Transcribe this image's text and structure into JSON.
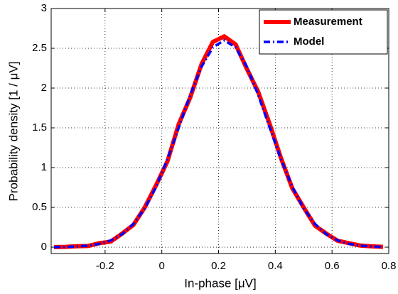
{
  "chart_data": {
    "type": "line",
    "xlabel": "In-phase  [μV]",
    "ylabel": "Probability density  [1 / μV]",
    "x": [
      -0.38,
      -0.34,
      -0.3,
      -0.26,
      -0.22,
      -0.18,
      -0.14,
      -0.1,
      -0.06,
      -0.02,
      0.02,
      0.06,
      0.1,
      0.14,
      0.18,
      0.22,
      0.26,
      0.3,
      0.34,
      0.38,
      0.42,
      0.46,
      0.5,
      0.54,
      0.58,
      0.62,
      0.66,
      0.7,
      0.74,
      0.78
    ],
    "series": [
      {
        "name": "Measurement",
        "color": "#ff0000",
        "line_style": "solid",
        "values": [
          0.002,
          0.004,
          0.012,
          0.015,
          0.05,
          0.07,
          0.17,
          0.28,
          0.5,
          0.78,
          1.08,
          1.55,
          1.88,
          2.3,
          2.58,
          2.65,
          2.55,
          2.24,
          1.95,
          1.55,
          1.12,
          0.74,
          0.5,
          0.27,
          0.17,
          0.08,
          0.05,
          0.02,
          0.01,
          0.004
        ]
      },
      {
        "name": "Model",
        "color": "#0000ff",
        "line_style": "dash-dot",
        "values": [
          0.001,
          0.003,
          0.008,
          0.019,
          0.041,
          0.085,
          0.163,
          0.292,
          0.487,
          0.759,
          1.106,
          1.505,
          1.911,
          2.267,
          2.512,
          2.6,
          2.512,
          2.267,
          1.911,
          1.505,
          1.106,
          0.759,
          0.487,
          0.292,
          0.163,
          0.085,
          0.041,
          0.019,
          0.008,
          0.003
        ]
      }
    ],
    "xlim": [
      -0.39,
      0.8
    ],
    "xticks": [
      -0.2,
      0,
      0.2,
      0.4,
      0.6,
      0.8
    ],
    "ylim": [
      -0.08,
      3
    ],
    "yticks": [
      0,
      0.5,
      1,
      1.5,
      2,
      2.5,
      3
    ],
    "grid": true,
    "legend": "top-right"
  }
}
